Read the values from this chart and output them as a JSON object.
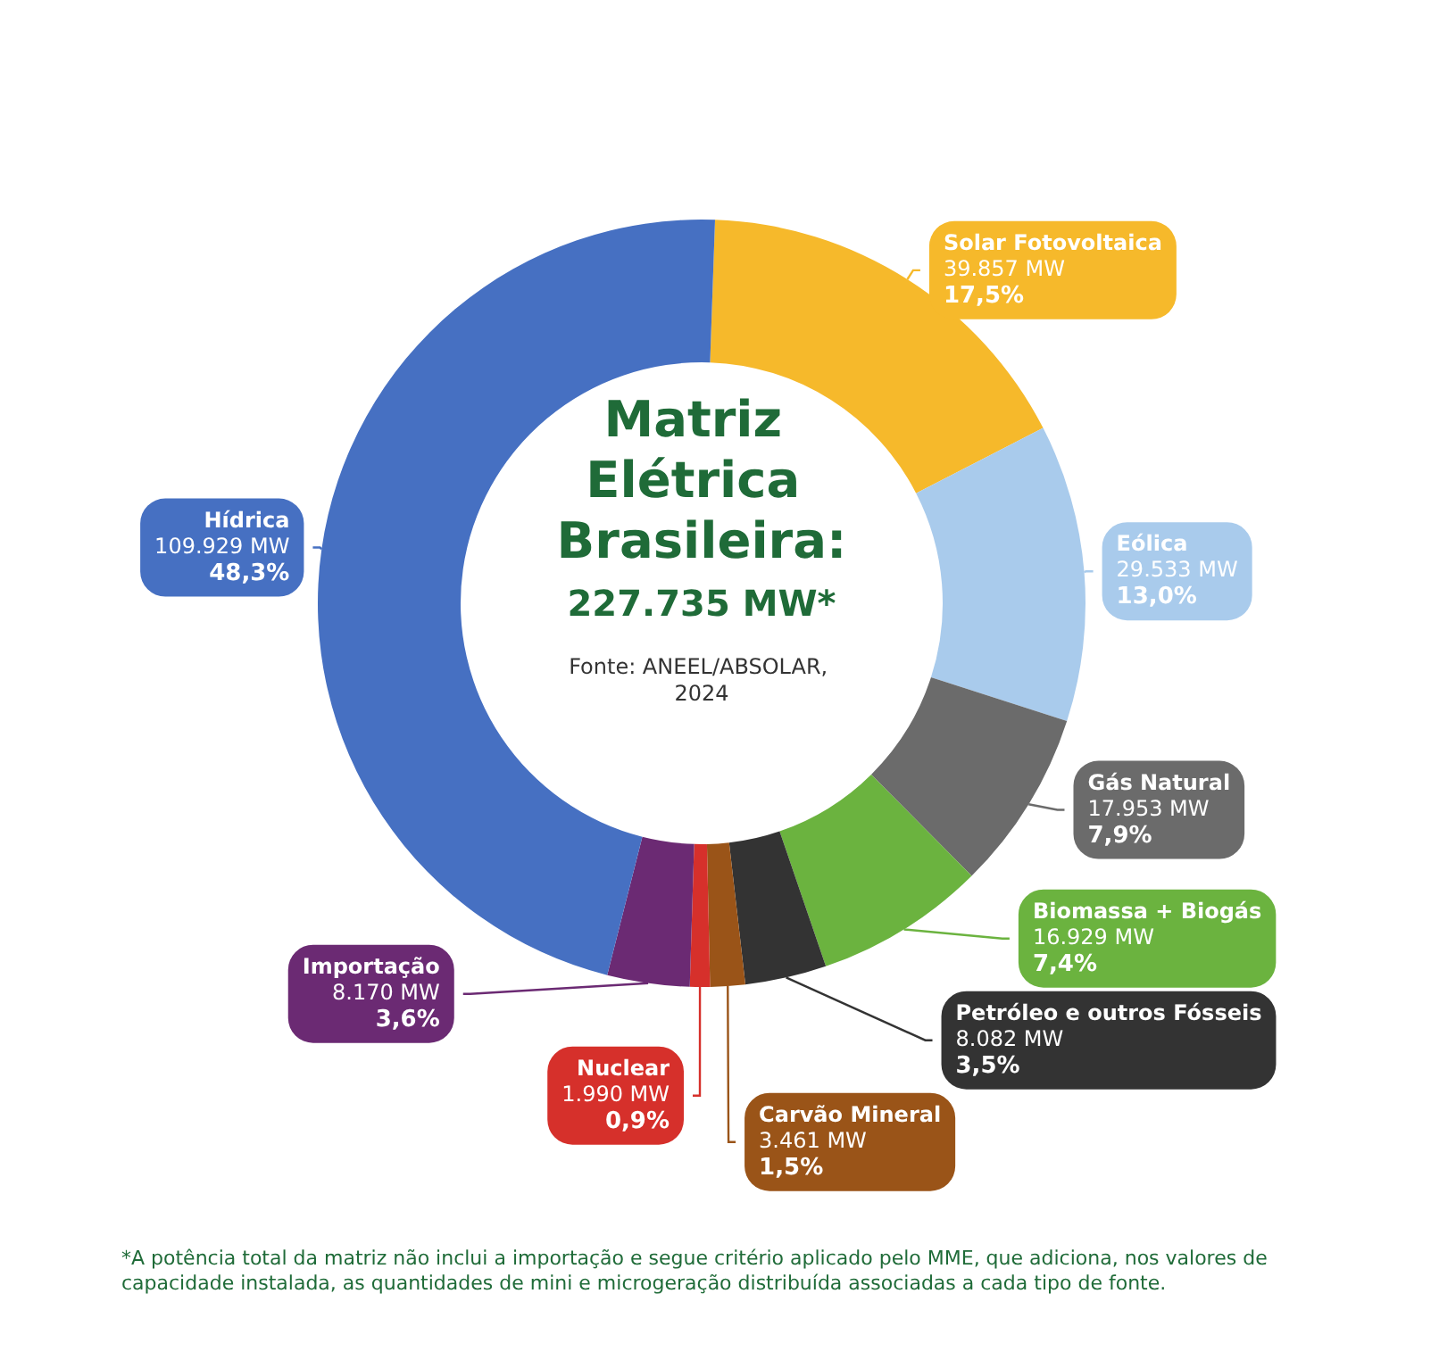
{
  "chart_data": {
    "type": "donut",
    "title": "Matriz Elétrica Brasileira:",
    "subtitle": "227.735 MW*",
    "categories": [
      "Solar Fotovoltaica",
      "Eólica",
      "Gás Natural",
      "Biomassa + Biogás",
      "Petróleo e outros Fósseis",
      "Carvão Mineral",
      "Nuclear",
      "Importação",
      "Hídrica"
    ],
    "values": [
      39857,
      29533,
      17953,
      16929,
      8082,
      3461,
      1990,
      8170,
      109929
    ],
    "colors": [
      "#f6b92b",
      "#a9cbec",
      "#6b6b6b",
      "#6bb33f",
      "#333333",
      "#9a5418",
      "#d6302b",
      "#6b2a73",
      "#4670c2"
    ],
    "value_labels": [
      "39.857 MW\n17,5%",
      "29.533 MW\n13,0%",
      "17.953 MW\n7,9%",
      "16.929 MW\n7,4%",
      "8.082 MW\n3,5%",
      "3.461 MW\n1,5%",
      "1.990 MW\n0,9%",
      "8.170 MW\n3,6%",
      "109.929 MW\n48,3%"
    ],
    "annotations": [
      "Fonte: ANEEL/ABSOLAR, 2024",
      "*A potência total da matriz não inclui a importação e segue critério aplicado pelo MME, que adiciona, nos valores de capacidade instalada, as quantidades de mini e microgeração distribuída associadas a cada tipo de fonte."
    ]
  }
}
